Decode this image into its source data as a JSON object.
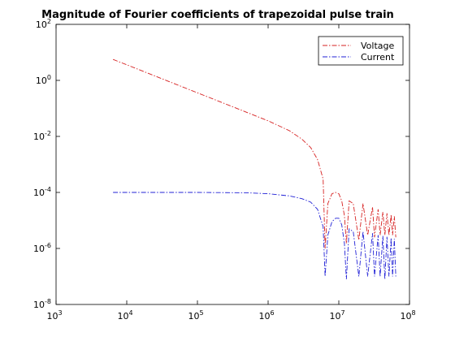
{
  "chart_data": {
    "type": "line",
    "title": "Magnitude of Fourier coefficients of trapezoidal pulse train",
    "xlabel": "",
    "ylabel": "",
    "x_scale": "log",
    "y_scale": "log",
    "xlim": [
      1000,
      100000000
    ],
    "ylim": [
      1e-08,
      100
    ],
    "x_ticks": [
      {
        "base": "10",
        "exp": "3",
        "value": 1000
      },
      {
        "base": "10",
        "exp": "4",
        "value": 10000
      },
      {
        "base": "10",
        "exp": "5",
        "value": 100000
      },
      {
        "base": "10",
        "exp": "6",
        "value": 1000000
      },
      {
        "base": "10",
        "exp": "7",
        "value": 10000000
      },
      {
        "base": "10",
        "exp": "8",
        "value": 100000000
      }
    ],
    "y_ticks": [
      {
        "base": "10",
        "exp": "-8",
        "value": 1e-08
      },
      {
        "base": "10",
        "exp": "-6",
        "value": 1e-06
      },
      {
        "base": "10",
        "exp": "-4",
        "value": 0.0001
      },
      {
        "base": "10",
        "exp": "-2",
        "value": 0.01
      },
      {
        "base": "10",
        "exp": "0",
        "value": 1
      },
      {
        "base": "10",
        "exp": "2",
        "value": 100
      }
    ],
    "grid": false,
    "legend_position": "top-right",
    "series": [
      {
        "name": "Voltage",
        "color": "#d62020",
        "style": "dash-dot",
        "x": [
          6400.0,
          10000.0,
          20000.0,
          50000.0,
          100000.0,
          200000.0,
          500000.0,
          1000000.0,
          2000000.0,
          3000000.0,
          4000000.0,
          5000000.0,
          6000000.0,
          6400000.0,
          7000000.0,
          8000000.0,
          9000000.0,
          10000000.0,
          11000000.0,
          12000000.0,
          12800000.0,
          14000000.0,
          16000000.0,
          19200000.0,
          22000000.0,
          25600000.0,
          30000000.0,
          32000000.0,
          36000000.0,
          38400000.0,
          42000000.0,
          44800000.0,
          48000000.0,
          51200000.0,
          55000000.0,
          57600000.0,
          61000000.0,
          64000000.0
        ],
        "y": [
          5.6,
          3.6,
          1.8,
          0.72,
          0.36,
          0.18,
          0.072,
          0.036,
          0.016,
          0.008,
          0.004,
          0.0015,
          0.0003,
          1e-06,
          4e-05,
          9e-05,
          0.0001,
          9e-05,
          5e-05,
          1.5e-05,
          1.5e-06,
          5e-05,
          4e-05,
          2e-06,
          4e-05,
          3e-06,
          3e-05,
          2.5e-06,
          2.5e-05,
          3e-06,
          2e-05,
          3e-06,
          1.8e-05,
          3e-06,
          1.6e-05,
          3e-06,
          1.4e-05,
          2.5e-06
        ]
      },
      {
        "name": "Current",
        "color": "#2020d6",
        "style": "dash-dot",
        "x": [
          6400.0,
          10000.0,
          100000.0,
          500000.0,
          1000000.0,
          2000000.0,
          3000000.0,
          4000000.0,
          5000000.0,
          6000000.0,
          6400000.0,
          7000000.0,
          8000000.0,
          9000000.0,
          10000000.0,
          11000000.0,
          12000000.0,
          12800000.0,
          14000000.0,
          16000000.0,
          19200000.0,
          22000000.0,
          25600000.0,
          30000000.0,
          32000000.0,
          36000000.0,
          38400000.0,
          42000000.0,
          44800000.0,
          48000000.0,
          51200000.0,
          55000000.0,
          57600000.0,
          61000000.0,
          64000000.0
        ],
        "y": [
          0.0001,
          0.0001,
          0.0001,
          9.7e-05,
          9e-05,
          7.5e-05,
          6e-05,
          4.5e-05,
          2.5e-05,
          6e-06,
          1e-07,
          3e-06,
          9e-06,
          1.2e-05,
          1.2e-05,
          7e-06,
          1.5e-06,
          8e-08,
          5e-06,
          4e-06,
          1e-07,
          4e-06,
          1e-07,
          3.5e-06,
          1e-07,
          3e-06,
          1e-07,
          2.8e-06,
          8e-08,
          2.6e-06,
          1e-07,
          2.4e-06,
          1e-07,
          2.2e-06,
          1e-07
        ]
      }
    ]
  }
}
